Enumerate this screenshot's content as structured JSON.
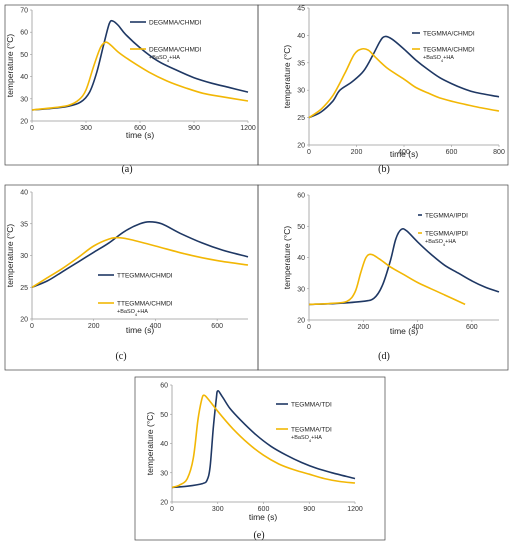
{
  "chart_data": [
    {
      "panel_label": "(a)",
      "type": "line",
      "xlabel": "time (s)",
      "ylabel": "temperature (°C)",
      "xlim": [
        0,
        1200
      ],
      "ylim": [
        20,
        70
      ],
      "xticks": [
        0,
        300,
        600,
        900,
        1200
      ],
      "yticks": [
        20,
        30,
        40,
        50,
        60,
        70
      ],
      "legend_position": "top-right",
      "series": [
        {
          "name": "DEGMMA/CHMDI",
          "color": "#1f3864",
          "points": [
            [
              0,
              25
            ],
            [
              100,
              25.6
            ],
            [
              200,
              26.6
            ],
            [
              270,
              28.5
            ],
            [
              320,
              33
            ],
            [
              360,
              42
            ],
            [
              400,
              55
            ],
            [
              430,
              64
            ],
            [
              450,
              65
            ],
            [
              480,
              63
            ],
            [
              520,
              59
            ],
            [
              600,
              53
            ],
            [
              700,
              47
            ],
            [
              800,
              43
            ],
            [
              900,
              39.5
            ],
            [
              1000,
              37
            ],
            [
              1100,
              35
            ],
            [
              1200,
              33
            ]
          ]
        },
        {
          "name": "DEGMMA/CHMDI",
          "name_sub": "+BaSO",
          "name_subscript": "4",
          "name_suffix": "+HA",
          "color": "#f2b705",
          "points": [
            [
              0,
              25
            ],
            [
              100,
              25.8
            ],
            [
              200,
              27
            ],
            [
              260,
              29.5
            ],
            [
              300,
              34
            ],
            [
              340,
              44
            ],
            [
              380,
              53
            ],
            [
              410,
              55.5
            ],
            [
              440,
              54
            ],
            [
              480,
              51
            ],
            [
              550,
              47
            ],
            [
              650,
              42
            ],
            [
              750,
              38
            ],
            [
              850,
              35
            ],
            [
              950,
              32.5
            ],
            [
              1050,
              31
            ],
            [
              1200,
              29
            ]
          ]
        }
      ]
    },
    {
      "panel_label": "(b)",
      "type": "line",
      "xlabel": "time (s)",
      "ylabel": "temperature (°C)",
      "xlim": [
        0,
        800
      ],
      "ylim": [
        20,
        45
      ],
      "xticks": [
        0,
        200,
        400,
        600,
        800
      ],
      "yticks": [
        20,
        25,
        30,
        35,
        40,
        45
      ],
      "legend_position": "top-right",
      "series": [
        {
          "name": "TEGMMA/CHMDI",
          "color": "#1f3864",
          "points": [
            [
              0,
              25
            ],
            [
              50,
              26
            ],
            [
              100,
              28
            ],
            [
              130,
              30
            ],
            [
              180,
              31.5
            ],
            [
              230,
              33.5
            ],
            [
              270,
              36.5
            ],
            [
              300,
              39
            ],
            [
              320,
              39.8
            ],
            [
              350,
              39.3
            ],
            [
              400,
              37.5
            ],
            [
              450,
              35.5
            ],
            [
              500,
              33.8
            ],
            [
              550,
              32.3
            ],
            [
              600,
              31.2
            ],
            [
              650,
              30.3
            ],
            [
              700,
              29.6
            ],
            [
              800,
              28.8
            ]
          ]
        },
        {
          "name": "TEGMMA/CHMDI",
          "name_sub": "+BaSO",
          "name_subscript": "4",
          "name_suffix": "+HA",
          "color": "#f2b705",
          "points": [
            [
              0,
              25
            ],
            [
              50,
              26.5
            ],
            [
              100,
              29
            ],
            [
              150,
              33
            ],
            [
              190,
              36.5
            ],
            [
              220,
              37.5
            ],
            [
              250,
              37.3
            ],
            [
              280,
              36
            ],
            [
              330,
              34
            ],
            [
              400,
              32
            ],
            [
              450,
              30.5
            ],
            [
              500,
              29.5
            ],
            [
              550,
              28.6
            ],
            [
              600,
              28
            ],
            [
              700,
              27
            ],
            [
              800,
              26.2
            ]
          ]
        }
      ]
    },
    {
      "panel_label": "(c)",
      "type": "line",
      "xlabel": "time (s)",
      "ylabel": "temperature (°C)",
      "xlim": [
        0,
        700
      ],
      "ylim": [
        20,
        40
      ],
      "xticks": [
        0,
        200,
        400,
        600
      ],
      "yticks": [
        20,
        25,
        30,
        35,
        40
      ],
      "legend_position": "bottom-center",
      "series": [
        {
          "name": "TTEGMMA/CHMDI",
          "color": "#1f3864",
          "points": [
            [
              0,
              25
            ],
            [
              50,
              26
            ],
            [
              100,
              27.5
            ],
            [
              150,
              29
            ],
            [
              200,
              30.5
            ],
            [
              250,
              32
            ],
            [
              300,
              33.8
            ],
            [
              350,
              35
            ],
            [
              380,
              35.3
            ],
            [
              420,
              35
            ],
            [
              480,
              33.5
            ],
            [
              550,
              32
            ],
            [
              620,
              30.8
            ],
            [
              700,
              29.8
            ]
          ]
        },
        {
          "name": "TTEGMMA/CHMDI",
          "name_sub": "+BaSO",
          "name_subscript": "4",
          "name_suffix": "+HA",
          "color": "#f2b705",
          "points": [
            [
              0,
              25
            ],
            [
              50,
              26.5
            ],
            [
              100,
              28
            ],
            [
              150,
              29.7
            ],
            [
              200,
              31.5
            ],
            [
              250,
              32.6
            ],
            [
              280,
              32.8
            ],
            [
              320,
              32.5
            ],
            [
              400,
              31.5
            ],
            [
              500,
              30.2
            ],
            [
              600,
              29.2
            ],
            [
              700,
              28.5
            ]
          ]
        }
      ]
    },
    {
      "panel_label": "(d)",
      "type": "line",
      "xlabel": "time (s)",
      "ylabel": "temperature (°C)",
      "xlim": [
        0,
        700
      ],
      "ylim": [
        20,
        60
      ],
      "xticks": [
        0,
        200,
        400,
        600
      ],
      "yticks": [
        20,
        30,
        40,
        50,
        60
      ],
      "legend_position": "top-right",
      "series": [
        {
          "name": "TEGMMA/IPDI",
          "color": "#1f3864",
          "points": [
            [
              0,
              25
            ],
            [
              100,
              25.3
            ],
            [
              200,
              26
            ],
            [
              240,
              27
            ],
            [
              270,
              31
            ],
            [
              300,
              39
            ],
            [
              320,
              46
            ],
            [
              340,
              49
            ],
            [
              360,
              48.5
            ],
            [
              400,
              45
            ],
            [
              450,
              41
            ],
            [
              500,
              37.5
            ],
            [
              550,
              35
            ],
            [
              600,
              32.5
            ],
            [
              650,
              30.5
            ],
            [
              700,
              29
            ]
          ]
        },
        {
          "name": "TEGMMA/IPDI",
          "name_sub": "+BaSO",
          "name_subscript": "4",
          "name_suffix": "+HA",
          "color": "#f2b705",
          "points": [
            [
              0,
              25
            ],
            [
              80,
              25.3
            ],
            [
              140,
              26
            ],
            [
              170,
              29
            ],
            [
              190,
              35
            ],
            [
              210,
              40
            ],
            [
              230,
              41
            ],
            [
              260,
              39.5
            ],
            [
              300,
              37
            ],
            [
              350,
              34.5
            ],
            [
              400,
              32
            ],
            [
              450,
              30
            ],
            [
              500,
              28
            ],
            [
              575,
              25
            ]
          ]
        }
      ]
    },
    {
      "panel_label": "(e)",
      "type": "line",
      "xlabel": "time (s)",
      "ylabel": "temperature (°C)",
      "xlim": [
        0,
        1200
      ],
      "ylim": [
        20,
        60
      ],
      "xticks": [
        0,
        300,
        600,
        900,
        1200
      ],
      "yticks": [
        20,
        30,
        40,
        50,
        60
      ],
      "legend_position": "top-right",
      "series": [
        {
          "name": "TEGMMA/TDI",
          "color": "#1f3864",
          "points": [
            [
              0,
              25
            ],
            [
              100,
              25.4
            ],
            [
              200,
              26.3
            ],
            [
              230,
              27.5
            ],
            [
              250,
              32
            ],
            [
              270,
              45
            ],
            [
              290,
              55
            ],
            [
              300,
              58
            ],
            [
              330,
              56
            ],
            [
              380,
              52
            ],
            [
              450,
              48
            ],
            [
              550,
              43
            ],
            [
              650,
              39
            ],
            [
              750,
              36
            ],
            [
              850,
              33.5
            ],
            [
              950,
              31.5
            ],
            [
              1050,
              30
            ],
            [
              1200,
              28
            ]
          ]
        },
        {
          "name": "TEGMMA/TDI",
          "name_sub": "+BaSO",
          "name_subscript": "4",
          "name_suffix": "+HA",
          "color": "#f2b705",
          "points": [
            [
              0,
              25
            ],
            [
              50,
              25.8
            ],
            [
              100,
              28
            ],
            [
              140,
              35
            ],
            [
              170,
              48
            ],
            [
              195,
              55
            ],
            [
              210,
              56.5
            ],
            [
              240,
              55
            ],
            [
              300,
              51
            ],
            [
              400,
              45
            ],
            [
              500,
              40
            ],
            [
              600,
              36
            ],
            [
              700,
              33
            ],
            [
              800,
              31
            ],
            [
              900,
              29.5
            ],
            [
              1000,
              28
            ],
            [
              1100,
              27
            ],
            [
              1200,
              26.5
            ]
          ]
        }
      ]
    }
  ]
}
